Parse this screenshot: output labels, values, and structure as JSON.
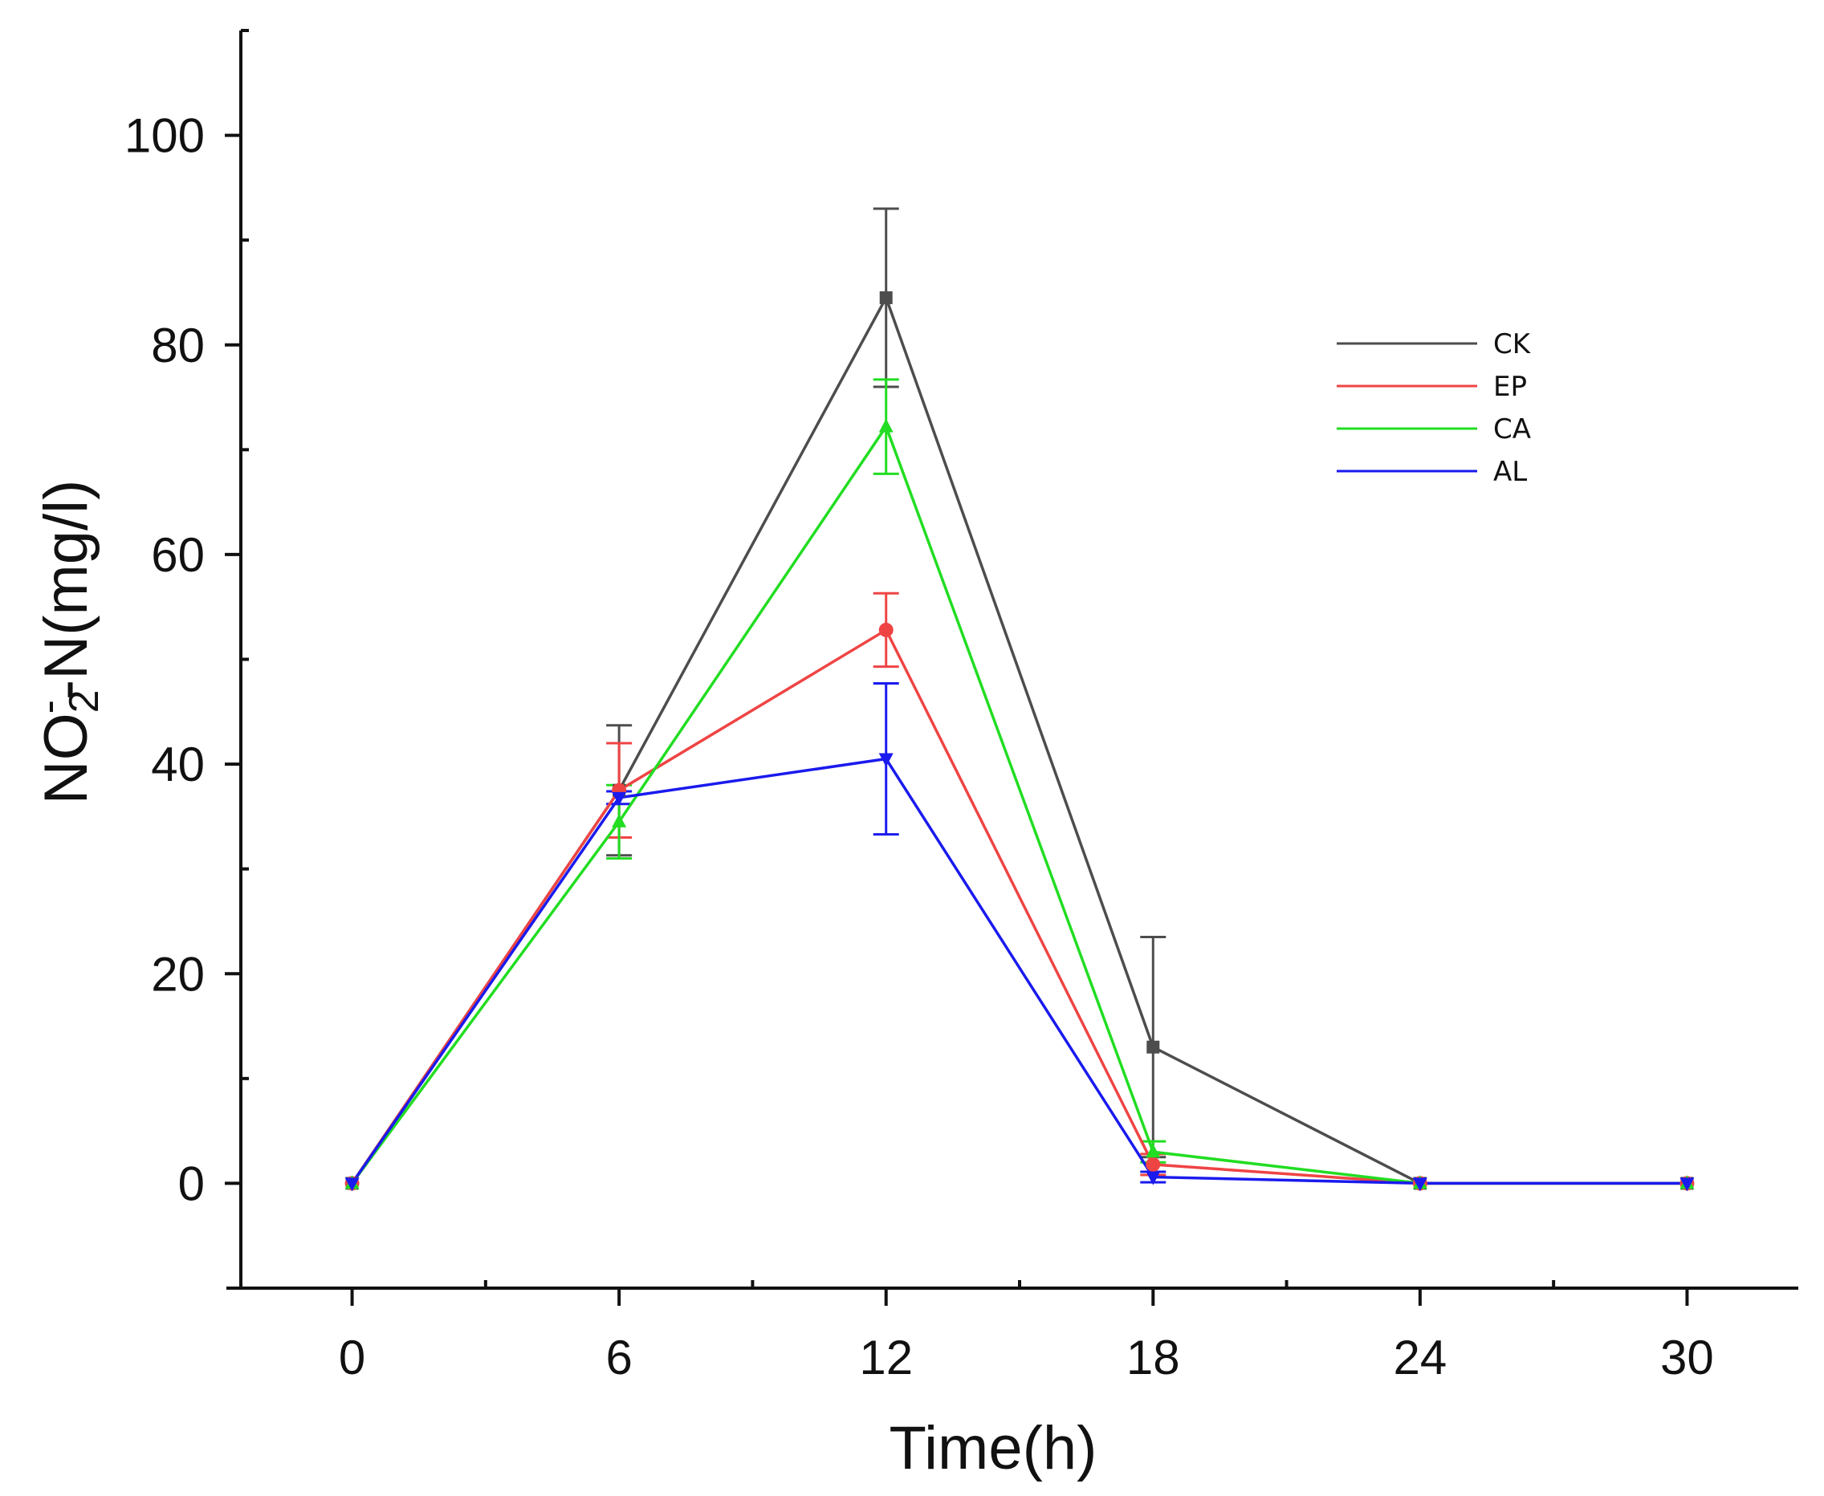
{
  "chart_data": {
    "type": "line",
    "title": "",
    "xlabel": "Time(h)",
    "ylabel": {
      "base": "NO",
      "sub": "2",
      "sup": "-",
      "rest": "-N(mg/l)"
    },
    "x": [
      0,
      6,
      12,
      18,
      24,
      30
    ],
    "x_ticks": [
      "0",
      "6",
      "12",
      "18",
      "24",
      "30"
    ],
    "y_ticks": [
      "0",
      "20",
      "40",
      "60",
      "80",
      "100"
    ],
    "xlim": [
      -2.5,
      32.5
    ],
    "ylim": [
      -10,
      110
    ],
    "legend_position": "top-right",
    "series": [
      {
        "name": "CK",
        "color": "#4d4d4d",
        "marker": "square",
        "values": [
          0,
          37.5,
          84.5,
          13,
          0,
          0
        ],
        "errors": [
          0,
          6.2,
          8.5,
          10.5,
          0,
          0
        ]
      },
      {
        "name": "EP",
        "color": "#ef4444",
        "marker": "circle",
        "values": [
          0,
          37.5,
          52.8,
          1.8,
          0,
          0
        ],
        "errors": [
          0,
          4.5,
          3.5,
          1.0,
          0,
          0
        ]
      },
      {
        "name": "CA",
        "color": "#22dd22",
        "marker": "triangle-up",
        "values": [
          0,
          34.5,
          72.2,
          3.0,
          0,
          0
        ],
        "errors": [
          0,
          3.5,
          4.5,
          1.0,
          0,
          0
        ]
      },
      {
        "name": "AL",
        "color": "#1a1aee",
        "marker": "triangle-down",
        "values": [
          0,
          36.8,
          40.5,
          0.6,
          0,
          0
        ],
        "errors": [
          0,
          0.6,
          7.2,
          0.5,
          0,
          0
        ]
      }
    ]
  }
}
